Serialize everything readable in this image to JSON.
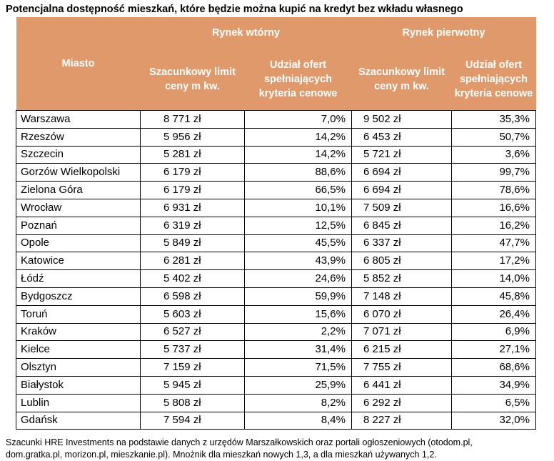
{
  "title": "Potencjalna dostępność mieszkań, które będzie można kupić na kredyt bez wkładu własnego",
  "header": {
    "city_label": "Miasto",
    "secondary_market": "Rynek wtórny",
    "primary_market": "Rynek pierwotny",
    "limit_label": "Szacunkowy limit ceny m kw.",
    "share_label": "Udział ofert spełniających kryteria cenowe"
  },
  "rows": [
    {
      "city": "Warszawa",
      "sec_limit": "8 771 zł",
      "sec_share": "7,0%",
      "pri_limit": "9 502 zł",
      "pri_share": "35,3%"
    },
    {
      "city": "Rzeszów",
      "sec_limit": "5 956 zł",
      "sec_share": "14,2%",
      "pri_limit": "6 453 zł",
      "pri_share": "50,7%"
    },
    {
      "city": "Szczecin",
      "sec_limit": "5 281 zł",
      "sec_share": "14,2%",
      "pri_limit": "5 721 zł",
      "pri_share": "3,6%"
    },
    {
      "city": "Gorzów Wielkopolski",
      "sec_limit": "6 179 zł",
      "sec_share": "88,6%",
      "pri_limit": "6 694 zł",
      "pri_share": "99,7%"
    },
    {
      "city": "Zielona Góra",
      "sec_limit": "6 179 zł",
      "sec_share": "66,5%",
      "pri_limit": "6 694 zł",
      "pri_share": "78,6%"
    },
    {
      "city": "Wrocław",
      "sec_limit": "6 931 zł",
      "sec_share": "10,1%",
      "pri_limit": "7 509 zł",
      "pri_share": "16,6%"
    },
    {
      "city": "Poznań",
      "sec_limit": "6 319 zł",
      "sec_share": "12,5%",
      "pri_limit": "6 845 zł",
      "pri_share": "16,2%"
    },
    {
      "city": "Opole",
      "sec_limit": "5 849 zł",
      "sec_share": "45,5%",
      "pri_limit": "6 337 zł",
      "pri_share": "47,7%"
    },
    {
      "city": "Katowice",
      "sec_limit": "6 281 zł",
      "sec_share": "43,9%",
      "pri_limit": "6 805 zł",
      "pri_share": "17,2%"
    },
    {
      "city": "Łódź",
      "sec_limit": "5 402 zł",
      "sec_share": "24,6%",
      "pri_limit": "5 852 zł",
      "pri_share": "14,0%"
    },
    {
      "city": "Bydgoszcz",
      "sec_limit": "6 598 zł",
      "sec_share": "59,9%",
      "pri_limit": "7 148 zł",
      "pri_share": "45,8%"
    },
    {
      "city": "Toruń",
      "sec_limit": "5 603 zł",
      "sec_share": "15,6%",
      "pri_limit": "6 070 zł",
      "pri_share": "26,4%"
    },
    {
      "city": "Kraków",
      "sec_limit": "6 527 zł",
      "sec_share": "2,2%",
      "pri_limit": "7 071 zł",
      "pri_share": "6,9%"
    },
    {
      "city": "Kielce",
      "sec_limit": "5 737 zł",
      "sec_share": "31,4%",
      "pri_limit": "6 215 zł",
      "pri_share": "27,1%"
    },
    {
      "city": "Olsztyn",
      "sec_limit": "7 159 zł",
      "sec_share": "71,5%",
      "pri_limit": "7 755 zł",
      "pri_share": "68,6%"
    },
    {
      "city": "Białystok",
      "sec_limit": "5 945 zł",
      "sec_share": "25,9%",
      "pri_limit": "6 441 zł",
      "pri_share": "34,9%"
    },
    {
      "city": "Lublin",
      "sec_limit": "5 808 zł",
      "sec_share": "8,2%",
      "pri_limit": "6 292 zł",
      "pri_share": "6,5%"
    },
    {
      "city": "Gdańsk",
      "sec_limit": "7 594 zł",
      "sec_share": "8,4%",
      "pri_limit": "8 227 zł",
      "pri_share": "32,0%"
    }
  ],
  "footnote": {
    "line1": "Szacunki HRE Investments na podstawie danych z urzędów Marszałkowskich oraz portali ogłoszeniowych (otodom.pl,",
    "line2": "dom.gratka.pl, morizon.pl, mieszkanie.pl). Mnożnik dla mieszkań nowych 1,3, a dla mieszkań używanych 1,2."
  }
}
